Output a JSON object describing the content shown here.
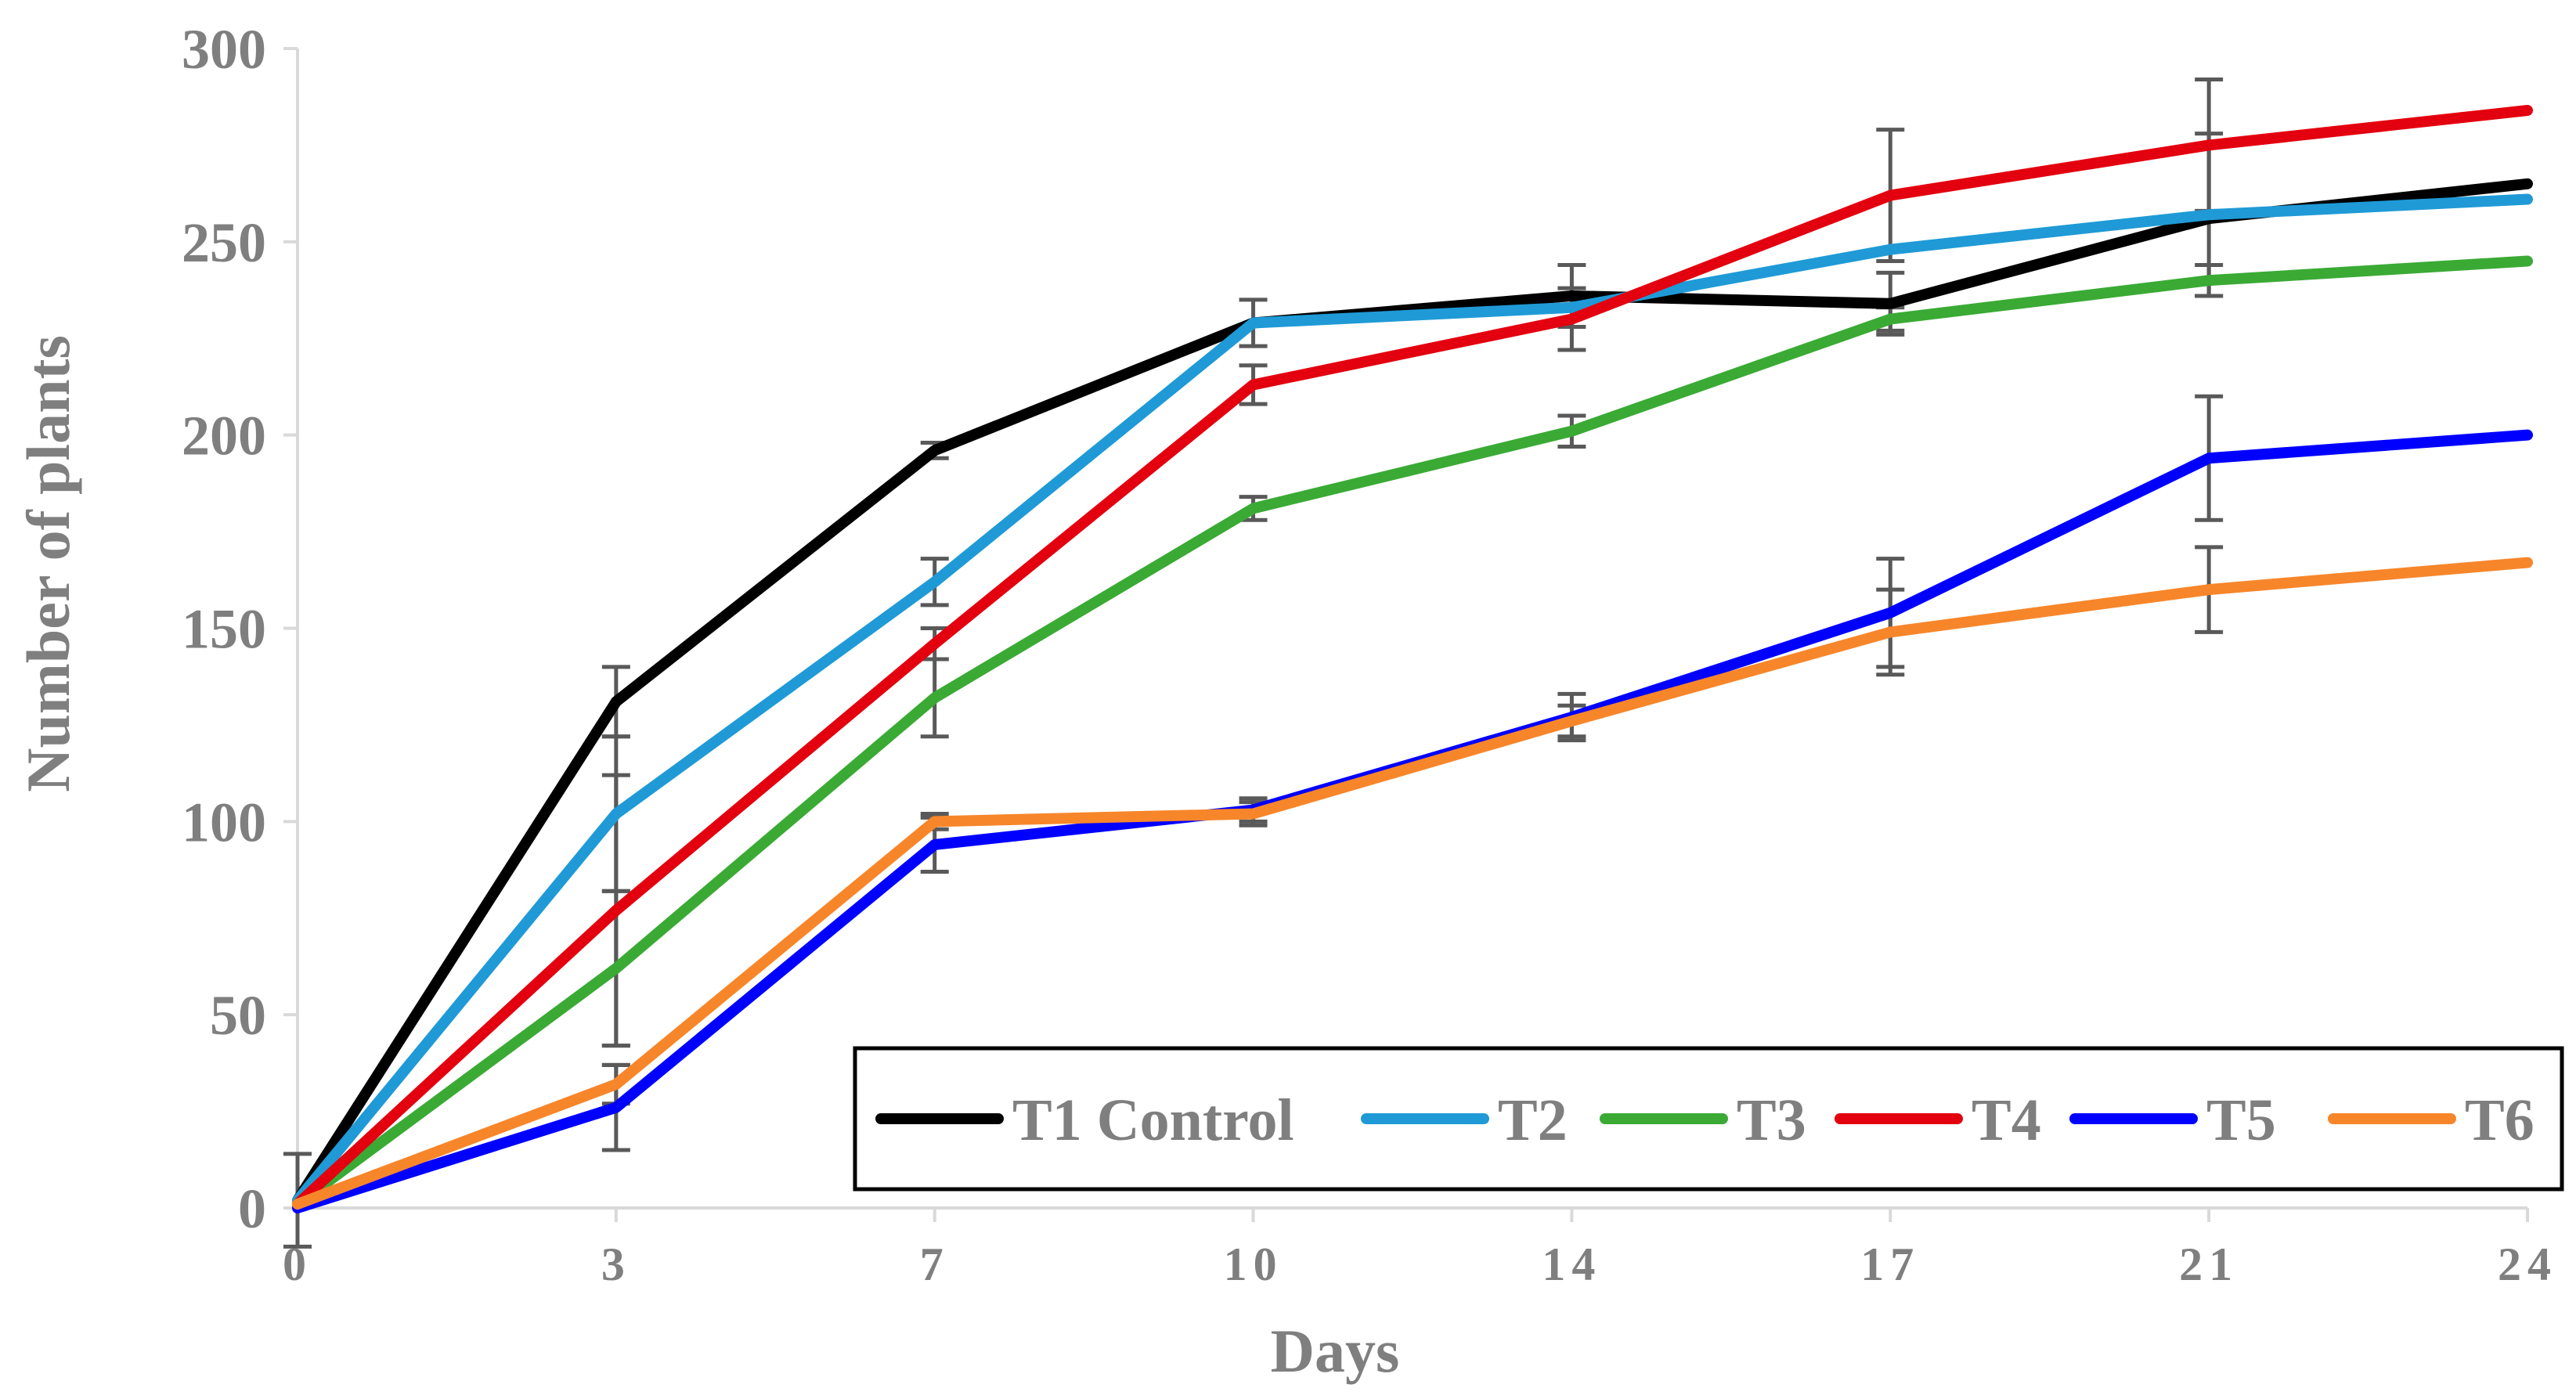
{
  "chart_data": {
    "type": "line",
    "title": "",
    "xlabel": "Days",
    "ylabel": "Number of plants",
    "categories": [
      "0",
      "3",
      "7",
      "10",
      "14",
      "17",
      "21",
      "24"
    ],
    "ylim": [
      0,
      300
    ],
    "yticks": [
      0,
      50,
      100,
      150,
      200,
      250,
      300
    ],
    "grid": false,
    "legend_position": "bottom-right",
    "series": [
      {
        "name": "T1 Control",
        "color": "#000000",
        "values": [
          2,
          131,
          196,
          229,
          236,
          234,
          256,
          265
        ],
        "errors": [
          12,
          9,
          2,
          6,
          8,
          8,
          0,
          0
        ]
      },
      {
        "name": "T2",
        "color": "#1f9ad6",
        "values": [
          2,
          102,
          162,
          229,
          233,
          248,
          257,
          261
        ],
        "errors": [
          0,
          20,
          6,
          0,
          0,
          0,
          21,
          0
        ]
      },
      {
        "name": "T3",
        "color": "#3aaa35",
        "values": [
          1,
          62,
          132,
          181,
          201,
          230,
          240,
          245
        ],
        "errors": [
          0,
          20,
          10,
          3,
          4,
          3,
          4,
          0
        ]
      },
      {
        "name": "T4",
        "color": "#e3000f",
        "values": [
          1,
          77,
          146,
          213,
          230,
          262,
          275,
          284
        ],
        "errors": [
          0,
          35,
          4,
          5,
          8,
          17,
          17,
          0
        ]
      },
      {
        "name": "T5",
        "color": "#0000ff",
        "values": [
          0,
          26,
          94,
          103,
          127,
          154,
          194,
          200
        ],
        "errors": [
          0,
          11,
          7,
          3,
          6,
          14,
          16,
          0
        ]
      },
      {
        "name": "T6",
        "color": "#f7862a",
        "values": [
          1,
          32,
          100,
          102,
          126,
          149,
          160,
          167
        ],
        "errors": [
          0,
          5,
          2,
          3,
          4,
          11,
          11,
          0
        ]
      }
    ]
  }
}
